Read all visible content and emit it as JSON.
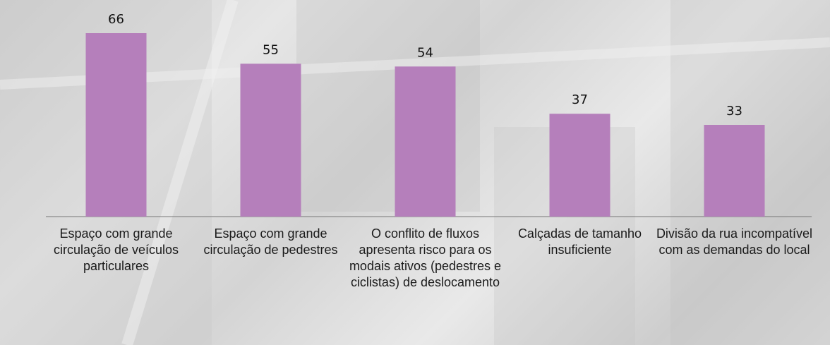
{
  "chart_data": {
    "type": "bar",
    "categories": [
      "Espaço com grande circulação de veículos particulares",
      "Espaço com grande circulação de pedestres",
      "O conflito de fluxos apresenta risco para os modais ativos (pedestres e ciclistas) de deslocamento",
      "Calçadas de tamanho insuficiente",
      "Divisão da rua incompatível com as demandas do local"
    ],
    "values": [
      66,
      55,
      54,
      37,
      33
    ],
    "color": "#b57fbb"
  }
}
